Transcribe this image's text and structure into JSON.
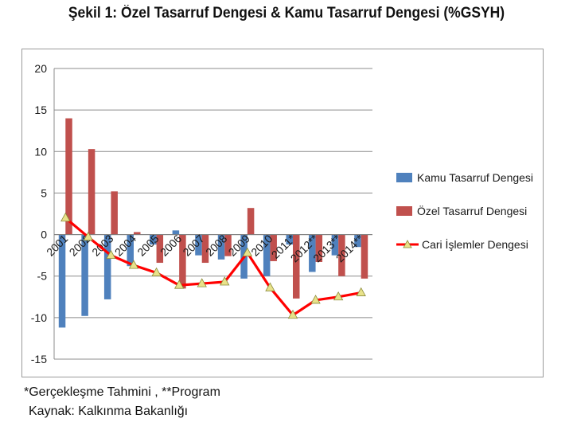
{
  "title": "Şekil 1: Özel Tasarruf Dengesi & Kamu Tasarruf Dengesi (%GSYH)",
  "footnote": "*Gerçekleşme Tahmini , **Program",
  "source": "Kaynak: Kalkınma Bakanlığı",
  "colors": {
    "kamu": "#4f81bd",
    "ozel": "#c0504d",
    "cari": "#ff0000",
    "marker": "#e8e28a"
  },
  "chart_data": {
    "type": "bar",
    "categories": [
      "2001",
      "2002",
      "2003",
      "2004",
      "2005",
      "2006",
      "2007",
      "2008",
      "2009",
      "2010",
      "2011*",
      "2012**",
      "2013**",
      "2014**"
    ],
    "series": [
      {
        "name": "Kamu Tasarruf Dengesi",
        "type": "bar",
        "values": [
          -11.2,
          -9.8,
          -7.8,
          -3.8,
          -1.2,
          0.5,
          -2.5,
          -3.0,
          -5.3,
          -5.0,
          -1.2,
          -4.5,
          -2.5,
          -1.5
        ]
      },
      {
        "name": "Özel Tasarruf Dengesi",
        "type": "bar",
        "values": [
          14.0,
          10.3,
          5.2,
          0.3,
          -3.4,
          -6.5,
          -3.4,
          -2.6,
          3.2,
          -3.2,
          -7.7,
          -3.3,
          -5.0,
          -5.3
        ]
      },
      {
        "name": "Cari İşlemler Dengesi",
        "type": "line",
        "values": [
          2.0,
          -0.3,
          -2.5,
          -3.7,
          -4.6,
          -6.1,
          -5.9,
          -5.7,
          -2.2,
          -6.4,
          -9.7,
          -7.9,
          -7.5,
          -7.0
        ]
      }
    ],
    "yticks": [
      20,
      15,
      10,
      5,
      0,
      -5,
      -10,
      -15
    ],
    "ylim": [
      -15,
      20
    ],
    "legend_position": "right",
    "grid": true
  }
}
